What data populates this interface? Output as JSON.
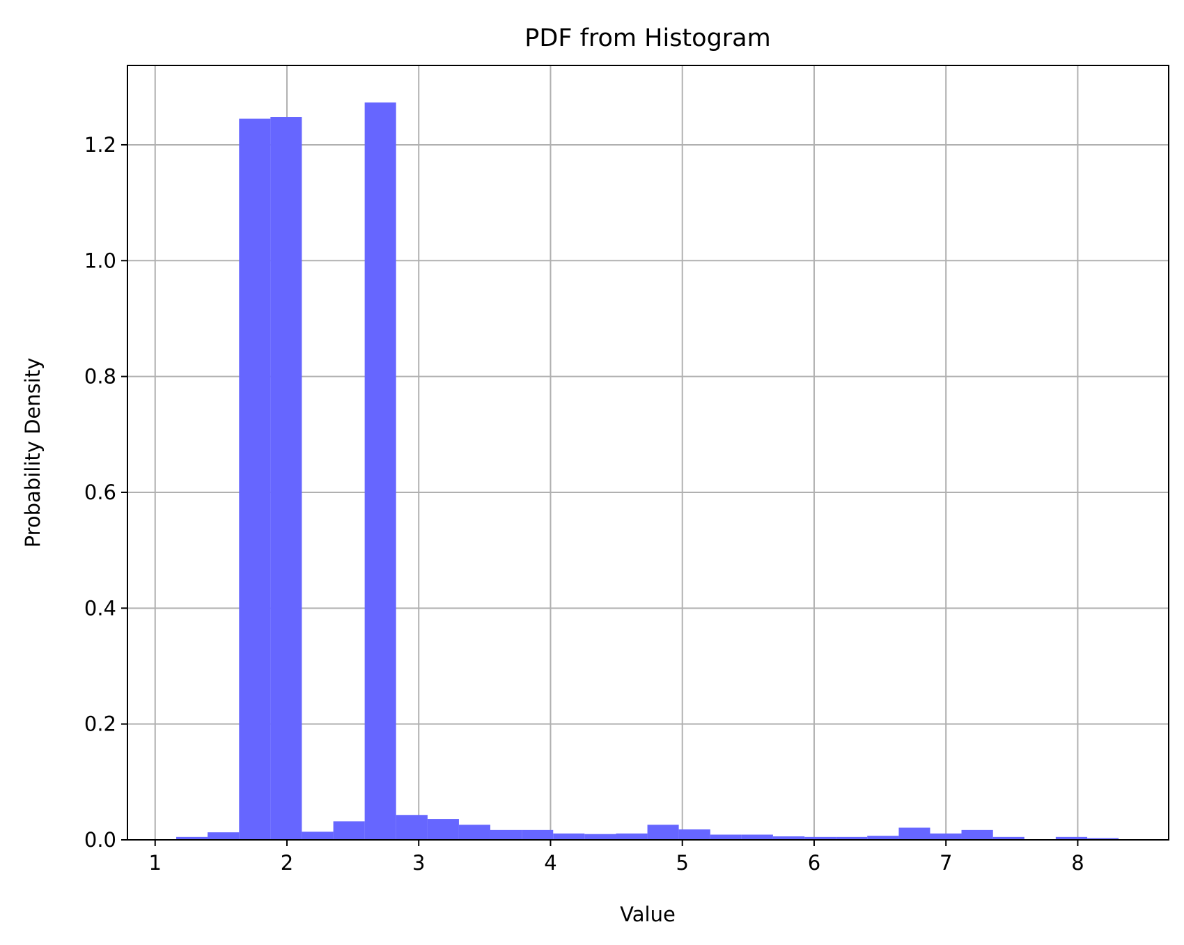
{
  "chart_data": {
    "type": "bar",
    "title": "PDF from Histogram",
    "xlabel": "Value",
    "ylabel": "Probability Density",
    "xlim": [
      0.79,
      8.69
    ],
    "ylim": [
      0,
      1.337
    ],
    "xticks": [
      1,
      2,
      3,
      4,
      5,
      6,
      7,
      8
    ],
    "xtick_labels": [
      "1",
      "2",
      "3",
      "4",
      "5",
      "6",
      "7",
      "8"
    ],
    "yticks": [
      0.0,
      0.2,
      0.4,
      0.6,
      0.8,
      1.0,
      1.2
    ],
    "ytick_labels": [
      "0.0",
      "0.2",
      "0.4",
      "0.6",
      "0.8",
      "1.0",
      "1.2"
    ],
    "grid": true,
    "bar_color": "#6666ff",
    "bin_edges": [
      1.16,
      1.398,
      1.637,
      1.875,
      2.113,
      2.352,
      2.59,
      2.828,
      3.067,
      3.305,
      3.543,
      3.782,
      4.02,
      4.258,
      4.497,
      4.735,
      4.973,
      5.212,
      5.45,
      5.688,
      5.927,
      6.165,
      6.403,
      6.642,
      6.88,
      7.118,
      7.357,
      7.595,
      7.833,
      8.072,
      8.31
    ],
    "values": [
      0.005,
      0.013,
      1.245,
      1.248,
      0.014,
      0.032,
      1.273,
      0.043,
      0.036,
      0.026,
      0.017,
      0.017,
      0.011,
      0.01,
      0.011,
      0.026,
      0.018,
      0.009,
      0.009,
      0.006,
      0.005,
      0.005,
      0.007,
      0.021,
      0.011,
      0.017,
      0.005,
      0.0,
      0.005,
      0.003
    ]
  }
}
